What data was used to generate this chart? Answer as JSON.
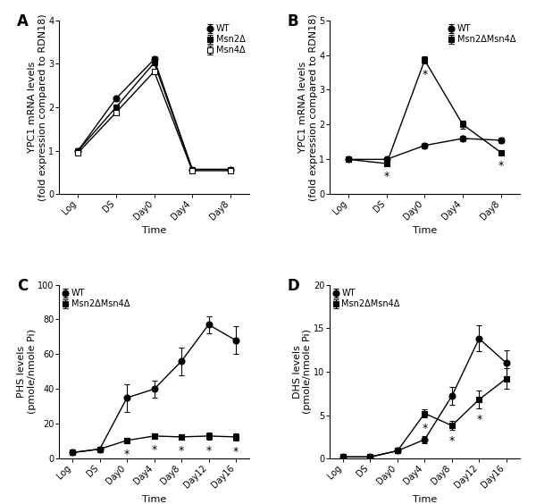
{
  "panel_A": {
    "title": "A",
    "xlabel": "Time",
    "ylabel": "YPC1 mRNA levels\n(fold expression compared to RDN18)",
    "ylim": [
      0,
      4
    ],
    "yticks": [
      0,
      1,
      2,
      3,
      4
    ],
    "xticks": [
      "Log",
      "DS",
      "Day0",
      "Day4",
      "Day8"
    ],
    "series": {
      "WT": {
        "y": [
          1.0,
          2.2,
          3.1,
          0.57,
          0.57
        ],
        "yerr": [
          0.05,
          0.05,
          0.06,
          0.03,
          0.03
        ],
        "marker": "o",
        "mfc": "black",
        "mec": "black"
      },
      "Msn2Δ": {
        "y": [
          1.0,
          2.0,
          3.02,
          0.57,
          0.57
        ],
        "yerr": [
          0.05,
          0.05,
          0.05,
          0.03,
          0.03
        ],
        "marker": "s",
        "mfc": "black",
        "mec": "black"
      },
      "Msn4Δ": {
        "y": [
          0.95,
          1.88,
          2.82,
          0.54,
          0.54
        ],
        "yerr": [
          0.05,
          0.05,
          0.06,
          0.03,
          0.03
        ],
        "marker": "s",
        "mfc": "white",
        "mec": "black"
      }
    },
    "legend_order": [
      "WT",
      "Msn2Δ",
      "Msn4Δ"
    ],
    "legend_loc": "upper right",
    "stars": []
  },
  "panel_B": {
    "title": "B",
    "xlabel": "Time",
    "ylabel": "YPC1 mRNA levels\n(fold expression compared to RDN18)",
    "ylim": [
      0,
      5
    ],
    "yticks": [
      0,
      1,
      2,
      3,
      4,
      5
    ],
    "xticks": [
      "Log",
      "DS",
      "Day0",
      "Day4",
      "Day8"
    ],
    "series": {
      "WT": {
        "y": [
          1.0,
          1.0,
          1.4,
          1.6,
          1.55
        ],
        "yerr": [
          0.04,
          0.04,
          0.08,
          0.08,
          0.07
        ],
        "marker": "o",
        "mfc": "black",
        "mec": "black"
      },
      "Msn2ΔMsn4Δ": {
        "y": [
          1.0,
          0.88,
          3.85,
          2.0,
          1.2
        ],
        "yerr": [
          0.04,
          0.06,
          0.1,
          0.12,
          0.07
        ],
        "marker": "s",
        "mfc": "black",
        "mec": "black"
      }
    },
    "legend_order": [
      "WT",
      "Msn2ΔMsn4Δ"
    ],
    "legend_loc": "upper right",
    "stars": [
      {
        "series": "Msn2ΔMsn4Δ",
        "xi": 1,
        "above": false
      },
      {
        "series": "Msn2ΔMsn4Δ",
        "xi": 2,
        "above": false
      },
      {
        "series": "Msn2ΔMsn4Δ",
        "xi": 3,
        "above": false
      },
      {
        "series": "Msn2ΔMsn4Δ",
        "xi": 4,
        "above": false
      }
    ]
  },
  "panel_C": {
    "title": "C",
    "xlabel": "Time",
    "ylabel": "PHS levels\n(pmole/nmole Pi)",
    "ylim": [
      0,
      100
    ],
    "yticks": [
      0,
      20,
      40,
      60,
      80,
      100
    ],
    "xticks": [
      "Log",
      "DS",
      "Day0",
      "Day4",
      "Day8",
      "Day12",
      "Day16"
    ],
    "series": {
      "WT": {
        "y": [
          3.5,
          5.5,
          35.0,
          40.0,
          56.0,
          77.0,
          68.0
        ],
        "yerr": [
          0.5,
          0.8,
          8.0,
          5.0,
          8.0,
          5.0,
          8.0
        ],
        "marker": "o",
        "mfc": "black",
        "mec": "black"
      },
      "Msn2ΔMsn4Δ": {
        "y": [
          3.5,
          5.5,
          10.5,
          13.0,
          12.5,
          13.0,
          12.5
        ],
        "yerr": [
          0.5,
          0.8,
          1.5,
          1.5,
          1.5,
          2.0,
          2.0
        ],
        "marker": "s",
        "mfc": "black",
        "mec": "black"
      }
    },
    "legend_order": [
      "WT",
      "Msn2ΔMsn4Δ"
    ],
    "legend_loc": "upper left",
    "stars": [
      {
        "series": "Msn2ΔMsn4Δ",
        "xi": 2,
        "above": false
      },
      {
        "series": "Msn2ΔMsn4Δ",
        "xi": 3,
        "above": false
      },
      {
        "series": "Msn2ΔMsn4Δ",
        "xi": 4,
        "above": false
      },
      {
        "series": "Msn2ΔMsn4Δ",
        "xi": 5,
        "above": false
      },
      {
        "series": "Msn2ΔMsn4Δ",
        "xi": 6,
        "above": false
      }
    ]
  },
  "panel_D": {
    "title": "D",
    "xlabel": "Time",
    "ylabel": "DHS levels\n(pmole/nmole Pi)",
    "ylim": [
      0,
      20
    ],
    "yticks": [
      0,
      5,
      10,
      15,
      20
    ],
    "xticks": [
      "Log",
      "DS",
      "Day0",
      "Day4",
      "Day8",
      "Day12",
      "Day16"
    ],
    "series": {
      "WT": {
        "y": [
          0.2,
          0.2,
          0.9,
          2.2,
          7.2,
          13.8,
          11.0
        ],
        "yerr": [
          0.05,
          0.05,
          0.15,
          0.4,
          1.0,
          1.5,
          1.5
        ],
        "marker": "o",
        "mfc": "black",
        "mec": "black"
      },
      "Msn2ΔMsn4Δ": {
        "y": [
          0.2,
          0.2,
          0.9,
          5.2,
          3.8,
          6.8,
          9.2
        ],
        "yerr": [
          0.05,
          0.05,
          0.15,
          0.5,
          0.5,
          1.0,
          1.2
        ],
        "marker": "s",
        "mfc": "black",
        "mec": "black"
      }
    },
    "legend_order": [
      "WT",
      "Msn2ΔMsn4Δ"
    ],
    "legend_loc": "upper left",
    "stars": [
      {
        "series": "Msn2ΔMsn4Δ",
        "xi": 3,
        "above": false
      },
      {
        "series": "Msn2ΔMsn4Δ",
        "xi": 4,
        "above": false
      },
      {
        "series": "Msn2ΔMsn4Δ",
        "xi": 5,
        "above": false
      }
    ]
  },
  "background_color": "#ffffff",
  "line_color": "black",
  "markersize": 5,
  "linewidth": 1.0,
  "capsize": 2,
  "elinewidth": 0.8,
  "fontsize_label": 8,
  "fontsize_tick": 7,
  "fontsize_panel": 12,
  "fontsize_legend": 7,
  "fontsize_star": 9
}
